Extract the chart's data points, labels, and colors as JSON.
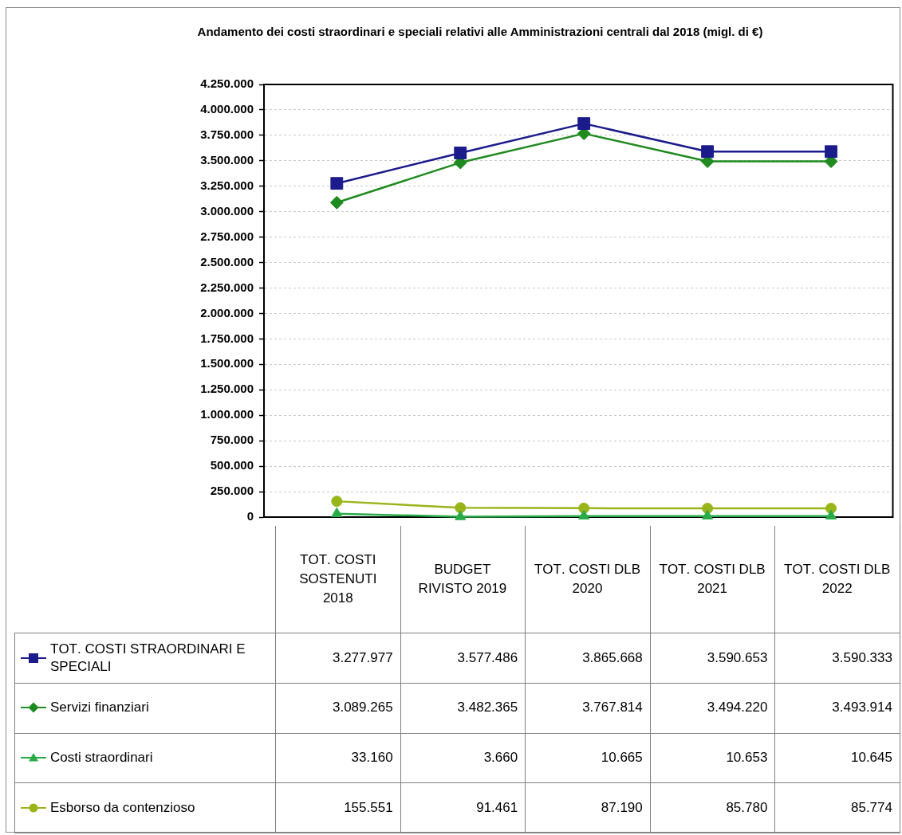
{
  "chart_data": {
    "type": "line",
    "title": "Andamento dei costi straordinari e speciali relativi alle Amministrazioni centrali dal 2018 (migl. di €)",
    "categories": [
      "TOT. COSTI SOSTENUTI 2018",
      "BUDGET RIVISTO 2019",
      "TOT. COSTI DLB 2020",
      "TOT. COSTI DLB 2021",
      "TOT. COSTI DLB 2022"
    ],
    "series": [
      {
        "name": "TOT. COSTI STRAORDINARI E SPECIALI",
        "color": "#1b1b8c",
        "marker": "square",
        "values": [
          3277977,
          3577486,
          3865668,
          3590653,
          3590333
        ],
        "value_labels": [
          "3.277.977",
          "3.577.486",
          "3.865.668",
          "3.590.653",
          "3.590.333"
        ]
      },
      {
        "name": "Servizi finanziari",
        "color": "#1f8a1f",
        "marker": "diamond",
        "values": [
          3089265,
          3482365,
          3767814,
          3494220,
          3493914
        ],
        "value_labels": [
          "3.089.265",
          "3.482.365",
          "3.767.814",
          "3.494.220",
          "3.493.914"
        ]
      },
      {
        "name": "Costi straordinari",
        "color": "#2aab4a",
        "marker": "triangle",
        "values": [
          33160,
          3660,
          10665,
          10653,
          10645
        ],
        "value_labels": [
          "33.160",
          "3.660",
          "10.665",
          "10.653",
          "10.645"
        ]
      },
      {
        "name": "Esborso da contenzioso",
        "color": "#99b51a",
        "marker": "circle",
        "values": [
          155551,
          91461,
          87190,
          85780,
          85774
        ],
        "value_labels": [
          "155.551",
          "91.461",
          "87.190",
          "85.780",
          "85.774"
        ]
      }
    ],
    "ylim": [
      0,
      4250000
    ],
    "yticks": [
      0,
      {
        "value": 250000,
        "label": "250.000"
      },
      {
        "value": 500000,
        "label": "500.000"
      },
      {
        "value": 750000,
        "label": "750.000"
      },
      {
        "value": 1000000,
        "label": "1.000.000"
      },
      {
        "value": 1250000,
        "label": "1.250.000"
      },
      {
        "value": 1500000,
        "label": "1.500.000"
      },
      {
        "value": 1750000,
        "label": "1.750.000"
      },
      {
        "value": 2000000,
        "label": "2.000.000"
      },
      {
        "value": 2250000,
        "label": "2.250.000"
      },
      {
        "value": 2500000,
        "label": "2.500.000"
      },
      {
        "value": 2750000,
        "label": "2.750.000"
      },
      {
        "value": 3000000,
        "label": "3.000.000"
      },
      {
        "value": 3250000,
        "label": "3.250.000"
      },
      {
        "value": 3500000,
        "label": "3.500.000"
      },
      {
        "value": 3750000,
        "label": "3.750.000"
      },
      {
        "value": 4000000,
        "label": "4.000.000"
      },
      {
        "value": 4250000,
        "label": "4.250.000"
      }
    ],
    "grid": "y",
    "legend": "bottom",
    "line_style": "solid"
  }
}
